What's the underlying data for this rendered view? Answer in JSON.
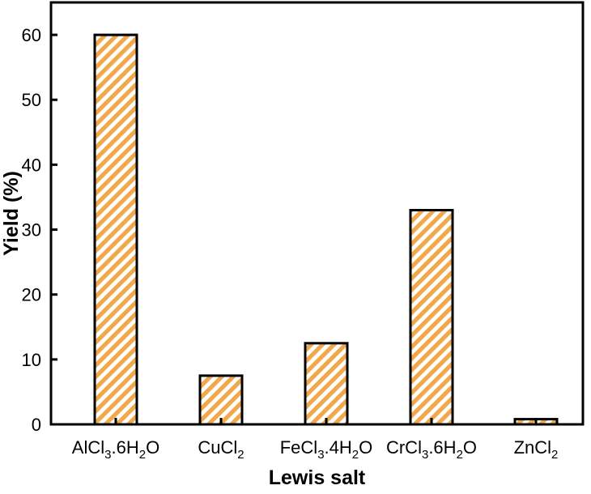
{
  "chart_data": {
    "type": "bar",
    "categories": [
      "AlCl3.6H2O",
      "CuCl2",
      "FeCl3.4H2O",
      "CrCl3.6H2O",
      "ZnCl2"
    ],
    "category_labels": [
      [
        {
          "t": "AlCl"
        },
        {
          "t": "3",
          "sub": true
        },
        {
          "t": ".6H"
        },
        {
          "t": "2",
          "sub": true
        },
        {
          "t": "O"
        }
      ],
      [
        {
          "t": "CuCl"
        },
        {
          "t": "2",
          "sub": true
        }
      ],
      [
        {
          "t": "FeCl"
        },
        {
          "t": "3",
          "sub": true
        },
        {
          "t": ".4H"
        },
        {
          "t": "2",
          "sub": true
        },
        {
          "t": "O"
        }
      ],
      [
        {
          "t": "CrCl"
        },
        {
          "t": "3",
          "sub": true
        },
        {
          "t": ".6H"
        },
        {
          "t": "2",
          "sub": true
        },
        {
          "t": "O"
        }
      ],
      [
        {
          "t": "ZnCl"
        },
        {
          "t": "2",
          "sub": true
        }
      ]
    ],
    "values": [
      60,
      7.5,
      12.5,
      33,
      0.8
    ],
    "xlabel": "Lewis salt",
    "ylabel": "Yield (%)",
    "ylim": [
      0,
      65
    ],
    "yticks": [
      0,
      10,
      20,
      30,
      40,
      50,
      60
    ],
    "grid": false,
    "bar_fill": "hatched",
    "colors": {
      "hatch": "#f0a84b",
      "background": "#ffffff",
      "axis": "#000000"
    }
  }
}
